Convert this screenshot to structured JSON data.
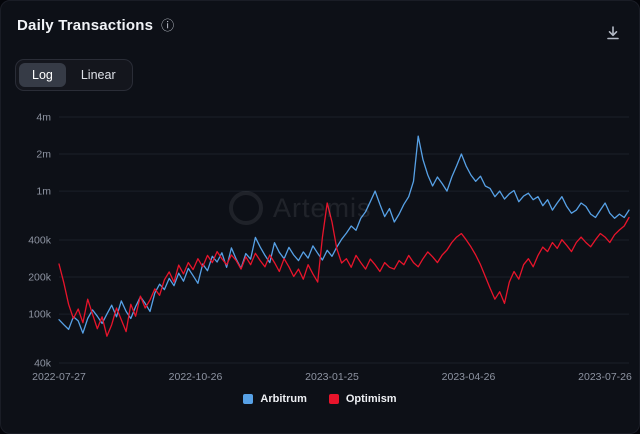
{
  "header": {
    "title": "Daily Transactions",
    "info_icon": "info-icon",
    "download_icon": "download-icon"
  },
  "toggle": {
    "options": [
      {
        "label": "Log",
        "selected": true
      },
      {
        "label": "Linear",
        "selected": false
      }
    ]
  },
  "watermark": {
    "text": "Artemis"
  },
  "colors": {
    "background": "#0d1017",
    "arbitrum": "#57a1e6",
    "optimism": "#e8142b",
    "axis_text": "#8e94a2",
    "gridline": "#1b1f29"
  },
  "chart_data": {
    "type": "line",
    "title": "Daily Transactions",
    "scale": "log",
    "grid": "horizontal",
    "legend_position": "bottom",
    "ylim": [
      40000,
      4000000
    ],
    "yticks": [
      {
        "value": 4000000,
        "label": "4m"
      },
      {
        "value": 2000000,
        "label": "2m"
      },
      {
        "value": 1000000,
        "label": "1m"
      },
      {
        "value": 400000,
        "label": "400k"
      },
      {
        "value": 200000,
        "label": "200k"
      },
      {
        "value": 100000,
        "label": "100k"
      },
      {
        "value": 40000,
        "label": "40k"
      }
    ],
    "x_domain_days": 380,
    "xticks": [
      {
        "day": 0,
        "label": "2022-07-27"
      },
      {
        "day": 91,
        "label": "2022-10-26"
      },
      {
        "day": 182,
        "label": "2023-01-25"
      },
      {
        "day": 273,
        "label": "2023-04-26"
      },
      {
        "day": 364,
        "label": "2023-07-26"
      }
    ],
    "series": [
      {
        "name": "Arbitrum",
        "color": "#57a1e6",
        "values": [
          90000,
          82000,
          75000,
          95000,
          88000,
          70000,
          92000,
          108000,
          96000,
          84000,
          100000,
          118000,
          95000,
          128000,
          105000,
          92000,
          115000,
          138000,
          122000,
          105000,
          148000,
          175000,
          158000,
          195000,
          170000,
          215000,
          185000,
          235000,
          205000,
          178000,
          255000,
          225000,
          295000,
          265000,
          315000,
          240000,
          345000,
          280000,
          235000,
          310000,
          280000,
          420000,
          350000,
          300000,
          262000,
          380000,
          318000,
          282000,
          348000,
          302000,
          272000,
          320000,
          285000,
          358000,
          312000,
          275000,
          330000,
          295000,
          350000,
          405000,
          455000,
          520000,
          480000,
          600000,
          680000,
          820000,
          1000000,
          780000,
          620000,
          720000,
          560000,
          650000,
          780000,
          900000,
          1200000,
          2800000,
          1800000,
          1350000,
          1100000,
          1300000,
          1150000,
          1000000,
          1300000,
          1600000,
          2000000,
          1600000,
          1350000,
          1200000,
          1320000,
          1100000,
          1050000,
          900000,
          1000000,
          860000,
          950000,
          1010000,
          820000,
          910000,
          960000,
          850000,
          900000,
          760000,
          850000,
          700000,
          800000,
          900000,
          750000,
          660000,
          700000,
          800000,
          750000,
          650000,
          610000,
          700000,
          800000,
          660000,
          600000,
          650000,
          610000,
          700000
        ]
      },
      {
        "name": "Optimism",
        "color": "#e8142b",
        "values": [
          255000,
          180000,
          120000,
          92000,
          110000,
          85000,
          132000,
          100000,
          76000,
          95000,
          66000,
          82000,
          112000,
          90000,
          72000,
          120000,
          96000,
          140000,
          112000,
          130000,
          160000,
          142000,
          190000,
          220000,
          182000,
          250000,
          212000,
          262000,
          230000,
          282000,
          242000,
          300000,
          262000,
          322000,
          282000,
          252000,
          302000,
          272000,
          232000,
          292000,
          252000,
          312000,
          272000,
          242000,
          302000,
          262000,
          222000,
          282000,
          242000,
          202000,
          232000,
          192000,
          252000,
          212000,
          182000,
          420000,
          800000,
          560000,
          340000,
          260000,
          282000,
          240000,
          300000,
          262000,
          232000,
          280000,
          252000,
          222000,
          262000,
          240000,
          232000,
          272000,
          252000,
          300000,
          262000,
          242000,
          282000,
          320000,
          292000,
          262000,
          302000,
          332000,
          382000,
          422000,
          452000,
          402000,
          352000,
          302000,
          252000,
          202000,
          162000,
          132000,
          152000,
          122000,
          182000,
          222000,
          192000,
          252000,
          282000,
          242000,
          300000,
          350000,
          322000,
          382000,
          342000,
          402000,
          362000,
          322000,
          382000,
          422000,
          382000,
          352000,
          402000,
          452000,
          422000,
          382000,
          442000,
          482000,
          520000,
          610000
        ]
      }
    ]
  }
}
